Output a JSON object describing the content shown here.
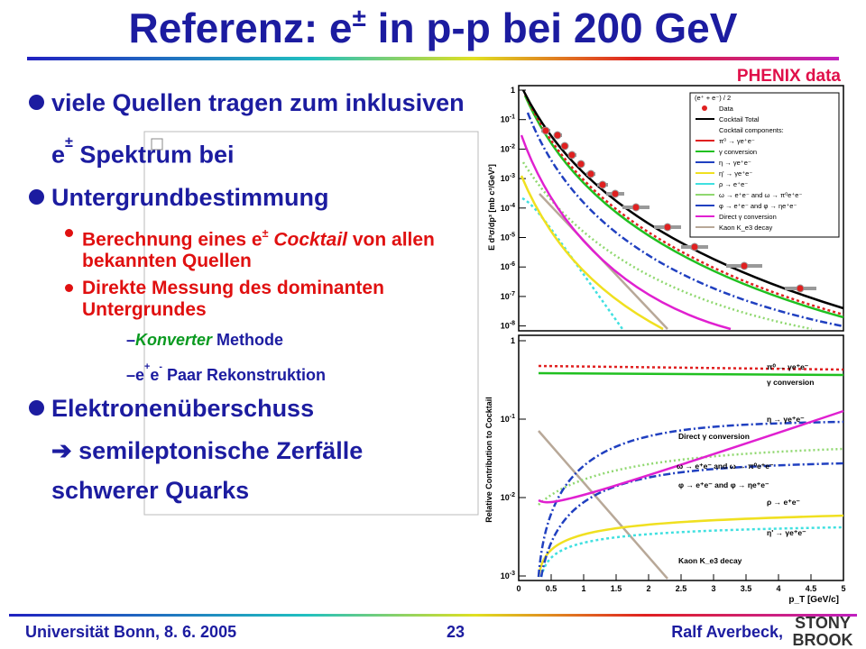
{
  "header": {
    "title": {
      "pre": "Referenz: e",
      "sup": "±",
      "post": " in p-p bei 200 GeV"
    },
    "tag": "PHENIX data"
  },
  "bullets": [
    {
      "level": 1,
      "runs": [
        "viele Quellen tragen zum inklusiven e",
        {
          "sup": "±"
        },
        " Spektrum bei"
      ]
    },
    {
      "level": 1,
      "runs": [
        "Untergrundbestimmung"
      ]
    },
    {
      "level": 2,
      "runs": [
        "Berechnung eines e",
        {
          "sup": "±"
        },
        " ",
        {
          "i": "Cocktail"
        },
        " von allen bekannten Quellen"
      ]
    },
    {
      "level": 2,
      "runs": [
        "Direkte Messung des dominanten Untergrundes"
      ]
    },
    {
      "level": 3,
      "runs": [
        "–",
        {
          "i": "Konverter"
        },
        " Methode"
      ]
    },
    {
      "level": 3,
      "runs": [
        "–e",
        {
          "sup": "+"
        },
        "e",
        {
          "sup": "-"
        },
        " Paar Rekonstruktion"
      ]
    },
    {
      "level": 1,
      "runs": [
        "Elektronenüberschuss"
      ]
    },
    {
      "level": 0,
      "runs": [
        "➔ semileptonische Zerfälle schwerer Quarks"
      ]
    }
  ],
  "plot": {
    "upper_ylabel": "E d³σ/dp³ [mb c³/GeV²]",
    "lower_ylabel": "Relative Contribution to Cocktail",
    "xlabel": "p_T [GeV/c]",
    "xticks": [
      "0",
      "0.5",
      "1",
      "1.5",
      "2",
      "2.5",
      "3",
      "3.5",
      "4",
      "4.5",
      "5"
    ],
    "upper_yticks": [
      {
        "b": "1"
      },
      {
        "b": "10",
        "e": "-1"
      },
      {
        "b": "10",
        "e": "-2"
      },
      {
        "b": "10",
        "e": "-3"
      },
      {
        "b": "10",
        "e": "-4"
      },
      {
        "b": "10",
        "e": "-5"
      },
      {
        "b": "10",
        "e": "-6"
      },
      {
        "b": "10",
        "e": "-7"
      },
      {
        "b": "10",
        "e": "-8"
      }
    ],
    "lower_yticks": [
      {
        "b": "1"
      },
      {
        "b": "10",
        "e": "-1"
      },
      {
        "b": "10",
        "e": "-2"
      },
      {
        "b": "10",
        "e": "-3"
      }
    ],
    "legend": [
      "(e⁺ + e⁻) / 2",
      "Data",
      "Cocktail Total",
      "Cocktail components:",
      "π⁰ → γe⁺e⁻",
      "γ conversion",
      "η → γe⁺e⁻",
      "η' → γe⁺e⁻",
      "ρ → e⁺e⁻",
      "ω → e⁺e⁻ and ω → π⁰e⁺e⁻",
      "φ → e⁺e⁻ and φ → ηe⁺e⁻",
      "Direct γ conversion",
      "Kaon K_e3 decay"
    ],
    "annotations": [
      "π⁰ → γe⁺e⁻",
      "γ conversion",
      "η → γe⁺e⁻",
      "Direct γ conversion",
      "ω → e⁺e⁻ and ω → π⁰e⁺e⁻",
      "φ → e⁺e⁻ and φ → ηe⁺e⁻",
      "ρ → e⁺e⁻",
      "η' → γe⁺e⁻",
      "Kaon K_e3 decay"
    ]
  },
  "footer": {
    "left": "Universität Bonn,  8. 6. 2005",
    "page": "23",
    "right": "Ralf Averbeck,",
    "logo_top": "STONY",
    "logo_bottom": "BROOK"
  }
}
